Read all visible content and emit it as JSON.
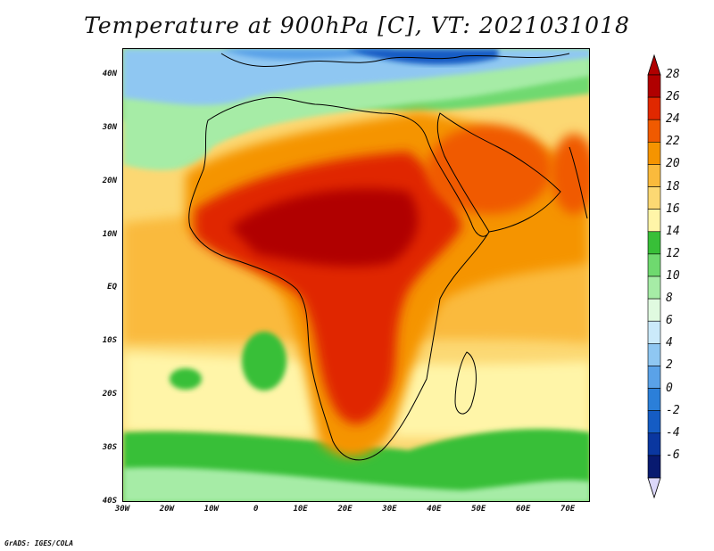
{
  "title": "Temperature at 900hPa [C], VT: 2021031018",
  "footer": "GrADS: IGES/COLA",
  "map": {
    "lat_range": [
      -40,
      45
    ],
    "lon_range": [
      -30,
      75
    ],
    "lat_ticks": [
      {
        "value": 40,
        "label": "40N"
      },
      {
        "value": 30,
        "label": "30N"
      },
      {
        "value": 20,
        "label": "20N"
      },
      {
        "value": 10,
        "label": "10N"
      },
      {
        "value": 0,
        "label": "EQ"
      },
      {
        "value": -10,
        "label": "10S"
      },
      {
        "value": -20,
        "label": "20S"
      },
      {
        "value": -30,
        "label": "30S"
      },
      {
        "value": -40,
        "label": "40S"
      }
    ],
    "lon_ticks": [
      {
        "value": -30,
        "label": "30W"
      },
      {
        "value": -20,
        "label": "20W"
      },
      {
        "value": -10,
        "label": "10W"
      },
      {
        "value": 0,
        "label": "0"
      },
      {
        "value": 10,
        "label": "10E"
      },
      {
        "value": 20,
        "label": "20E"
      },
      {
        "value": 30,
        "label": "30E"
      },
      {
        "value": 40,
        "label": "40E"
      },
      {
        "value": 50,
        "label": "50E"
      },
      {
        "value": 60,
        "label": "60E"
      },
      {
        "value": 70,
        "label": "70E"
      }
    ]
  },
  "colorbar": {
    "labels": [
      "28",
      "26",
      "24",
      "22",
      "20",
      "18",
      "16",
      "14",
      "12",
      "10",
      "8",
      "6",
      "4",
      "2",
      "0",
      "-2",
      "-4",
      "-6"
    ],
    "colors": [
      "#b00000",
      "#e02800",
      "#f05a00",
      "#f59400",
      "#faba3c",
      "#fcd873",
      "#fff5a8",
      "#38bf38",
      "#6fd96f",
      "#a6eca6",
      "#e0fae0",
      "#cbeafa",
      "#8fc7f2",
      "#5aa2e8",
      "#2b7fd9",
      "#155cc4",
      "#0a37a0",
      "#081a70"
    ],
    "top_arrow_color": "#b00000",
    "bottom_arrow_color": "#dcd8fa"
  }
}
